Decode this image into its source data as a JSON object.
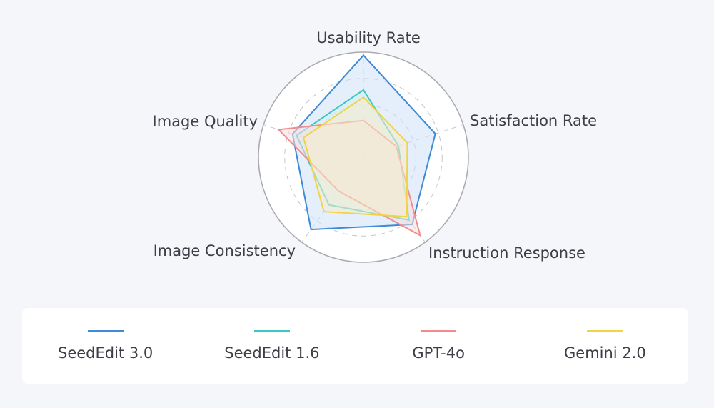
{
  "chart_data": {
    "type": "radar",
    "axes": [
      "Usability Rate",
      "Satisfaction Rate",
      "Instruction Response",
      "Image Consistency",
      "Image Quality"
    ],
    "range": [
      0,
      1
    ],
    "grid_rings": 4,
    "series": [
      {
        "name": "SeedEdit 3.0",
        "color": "#3d8ad6",
        "fill": "#cfe0f7",
        "values": [
          0.97,
          0.72,
          0.79,
          0.85,
          0.71
        ]
      },
      {
        "name": "SeedEdit 1.6",
        "color": "#3cc7c2",
        "fill": "#d3f1f0",
        "values": [
          0.64,
          0.35,
          0.74,
          0.56,
          0.67
        ]
      },
      {
        "name": "GPT-4o",
        "color": "#f08c8c",
        "fill": "#f9dede",
        "values": [
          0.35,
          0.33,
          0.92,
          0.4,
          0.85
        ]
      },
      {
        "name": "Gemini 2.0",
        "color": "#f0d445",
        "fill": "#f7eccc",
        "values": [
          0.57,
          0.44,
          0.7,
          0.64,
          0.6
        ]
      }
    ]
  }
}
